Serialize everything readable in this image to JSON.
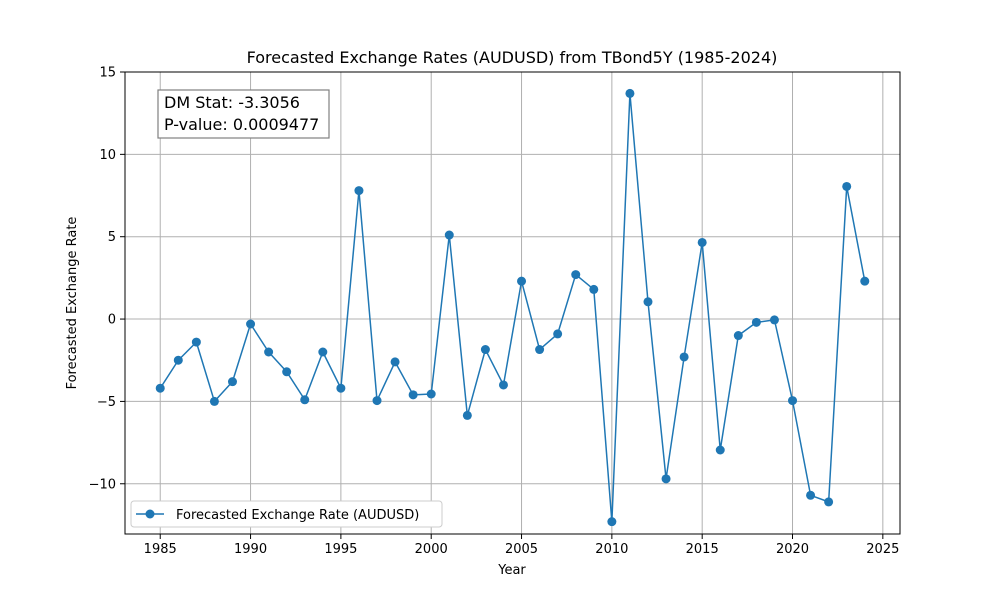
{
  "chart_data": {
    "type": "line",
    "title": "Forecasted Exchange Rates (AUDUSD) from TBond5Y (1985-2024)",
    "xlabel": "Year",
    "ylabel": "Forecasted Exchange Rate",
    "xlim": [
      1983.05,
      2025.95
    ],
    "ylim": [
      -13.05,
      15.0
    ],
    "xticks": [
      1985,
      1990,
      1995,
      2000,
      2005,
      2010,
      2015,
      2020,
      2025
    ],
    "yticks": [
      -10,
      -5,
      0,
      5,
      10,
      15
    ],
    "grid": true,
    "legend_position": "lower-left",
    "annotation": {
      "line1": "DM Stat: -3.3056",
      "line2": "P-value: 0.0009477",
      "position": "top-left"
    },
    "series": [
      {
        "name": "Forecasted Exchange Rate (AUDUSD)",
        "color": "#1f77b4",
        "marker": "circle",
        "x": [
          1985,
          1986,
          1987,
          1988,
          1989,
          1990,
          1991,
          1992,
          1993,
          1994,
          1995,
          1996,
          1997,
          1998,
          1999,
          2000,
          2001,
          2002,
          2003,
          2004,
          2005,
          2006,
          2007,
          2008,
          2009,
          2010,
          2011,
          2012,
          2013,
          2014,
          2015,
          2016,
          2017,
          2018,
          2019,
          2020,
          2021,
          2022,
          2023,
          2024
        ],
        "y": [
          -4.2,
          -2.5,
          -1.4,
          -5.0,
          -3.8,
          -0.3,
          -2.0,
          -3.2,
          -4.9,
          -2.0,
          -4.2,
          7.8,
          -4.95,
          -2.6,
          -4.6,
          -4.55,
          5.1,
          -5.85,
          -1.85,
          -4.0,
          2.3,
          -1.85,
          -0.9,
          2.7,
          1.8,
          -12.3,
          13.7,
          1.05,
          -9.7,
          -2.3,
          4.65,
          -7.95,
          -1.0,
          -0.2,
          -0.05,
          -4.95,
          -10.7,
          -11.1,
          8.05,
          2.3
        ]
      }
    ]
  }
}
